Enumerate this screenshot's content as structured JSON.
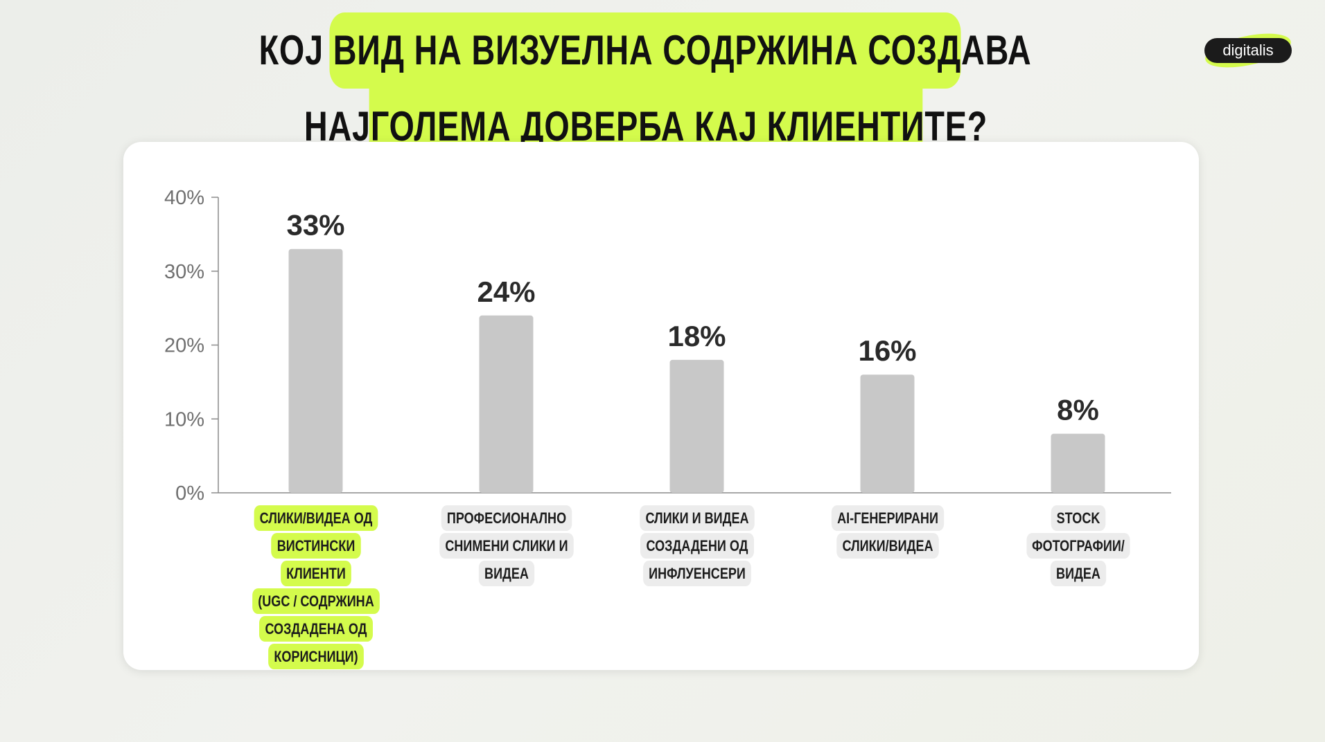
{
  "title": {
    "line1": "КОЈ ВИД НА ВИЗУЕЛНА СОДРЖИНА СОЗДАВА",
    "line2": "НАЈГОЛЕМА ДОВЕРБА КАЈ КЛИЕНТИТЕ?"
  },
  "logo": {
    "text": "digitalis"
  },
  "colors": {
    "accent": "#d4fb4c",
    "bar": "#c8c8c8",
    "label_bg": "#ececec",
    "text": "#1c1c1c",
    "axis": "#8a8a8a"
  },
  "chart_data": {
    "type": "bar",
    "title": "КОЈ ВИД НА ВИЗУЕЛНА СОДРЖИНА СОЗДАВА НАЈГОЛЕМА ДОВЕРБА КАЈ КЛИЕНТИТЕ?",
    "categories": [
      "СЛИКИ/ВИДЕА ОД ВИСТИНСКИ КЛИЕНТИ (UGC / СОДРЖИНА СОЗДАДЕНА ОД КОРИСНИЦИ)",
      "ПРОФЕСИОНАЛНО СНИМЕНИ СЛИКИ И ВИДЕА",
      "СЛИКИ И ВИДЕА СОЗДАДЕНИ ОД ИНФЛУЕНСЕРИ",
      "AI-ГЕНЕРИРАНИ СЛИКИ/ВИДЕА",
      "STOCK ФОТОГРАФИИ/ ВИДЕА"
    ],
    "category_lines": [
      [
        "СЛИКИ/ВИДЕА ОД",
        "ВИСТИНСКИ КЛИЕНТИ",
        "(UGC / СОДРЖИНА",
        "СОЗДАДЕНА ОД",
        "КОРИСНИЦИ)"
      ],
      [
        "ПРОФЕСИОНАЛНО",
        "СНИМЕНИ СЛИКИ И",
        "ВИДЕА"
      ],
      [
        "СЛИКИ И ВИДЕА",
        "СОЗДАДЕНИ ОД",
        "ИНФЛУЕНСЕРИ"
      ],
      [
        "AI-ГЕНЕРИРАНИ",
        "СЛИКИ/ВИДЕА"
      ],
      [
        "STOCK",
        "ФОТОГРАФИИ/",
        "ВИДЕА"
      ]
    ],
    "highlighted_category": 0,
    "values": [
      33,
      24,
      18,
      16,
      8
    ],
    "value_labels": [
      "33%",
      "24%",
      "18%",
      "16%",
      "8%"
    ],
    "ylim": [
      0,
      40
    ],
    "yticks": [
      0,
      10,
      20,
      30,
      40
    ],
    "ytick_labels": [
      "0%",
      "10%",
      "20%",
      "30%",
      "40%"
    ],
    "xlabel": "",
    "ylabel": "",
    "grid": false,
    "legend": "none"
  }
}
